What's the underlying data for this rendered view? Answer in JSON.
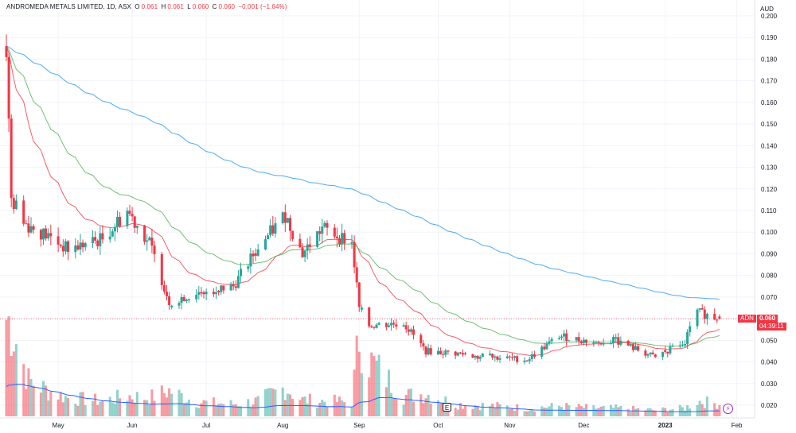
{
  "header": {
    "symbol": "ANDROMEDA METALS LIMITED, 1D, ASX",
    "o_label": "O",
    "o_value": "0.061",
    "h_label": "H",
    "h_value": "0.061",
    "l_label": "L",
    "l_value": "0.060",
    "c_label": "C",
    "c_value": "0.060",
    "change": "−0.001 (−1.64%)"
  },
  "price_tag": {
    "ticker": "ADN",
    "price": "0.060",
    "countdown": "04:39:11"
  },
  "currency_label": "AUD",
  "badges": {
    "earnings": "E",
    "alert_icon": "lightning-icon"
  },
  "colors": {
    "up": "#26a69a",
    "down": "#f23645",
    "ma_fast": "#f23645",
    "ma_mid": "#4caf50",
    "ma_slow": "#2196f3",
    "volume_ma": "#2962ff"
  },
  "chart_data": {
    "type": "candlestick",
    "title": "ANDROMEDA METALS LIMITED, 1D, ASX",
    "ylabel": "AUD",
    "ylim": [
      0.015,
      0.2
    ],
    "y_ticks": [
      "0.200",
      "0.190",
      "0.180",
      "0.170",
      "0.160",
      "0.150",
      "0.140",
      "0.130",
      "0.120",
      "0.110",
      "0.100",
      "0.090",
      "0.080",
      "0.070",
      "0.060",
      "0.050",
      "0.040",
      "0.030",
      "0.020"
    ],
    "x_ticks": [
      "May",
      "Jun",
      "Jul",
      "Aug",
      "Sep",
      "Oct",
      "Nov",
      "Dec",
      "2023",
      "Feb"
    ],
    "last_price": 0.06,
    "waypoints": [
      {
        "date": "2022-04-11",
        "close": 0.185,
        "volume": 0.95
      },
      {
        "date": "2022-04-13",
        "close": 0.115,
        "volume": 0.9
      },
      {
        "date": "2022-04-20",
        "close": 0.103,
        "volume": 0.35
      },
      {
        "date": "2022-04-28",
        "close": 0.098,
        "volume": 0.25
      },
      {
        "date": "2022-05-06",
        "close": 0.092,
        "volume": 0.18
      },
      {
        "date": "2022-05-20",
        "close": 0.097,
        "volume": 0.15
      },
      {
        "date": "2022-05-30",
        "close": 0.11,
        "volume": 0.2
      },
      {
        "date": "2022-06-08",
        "close": 0.095,
        "volume": 0.18
      },
      {
        "date": "2022-06-16",
        "close": 0.068,
        "volume": 0.25
      },
      {
        "date": "2022-06-27",
        "close": 0.072,
        "volume": 0.14
      },
      {
        "date": "2022-07-12",
        "close": 0.075,
        "volume": 0.12
      },
      {
        "date": "2022-07-22",
        "close": 0.093,
        "volume": 0.15
      },
      {
        "date": "2022-08-02",
        "close": 0.108,
        "volume": 0.28
      },
      {
        "date": "2022-08-09",
        "close": 0.09,
        "volume": 0.16
      },
      {
        "date": "2022-08-17",
        "close": 0.102,
        "volume": 0.15
      },
      {
        "date": "2022-08-29",
        "close": 0.095,
        "volume": 0.14
      },
      {
        "date": "2022-09-01",
        "close": 0.065,
        "volume": 0.8
      },
      {
        "date": "2022-09-05",
        "close": 0.057,
        "volume": 0.55
      },
      {
        "date": "2022-09-19",
        "close": 0.058,
        "volume": 0.2
      },
      {
        "date": "2022-09-28",
        "close": 0.045,
        "volume": 0.22
      },
      {
        "date": "2022-10-10",
        "close": 0.044,
        "volume": 0.12
      },
      {
        "date": "2022-10-27",
        "close": 0.042,
        "volume": 0.1
      },
      {
        "date": "2022-11-08",
        "close": 0.041,
        "volume": 0.08
      },
      {
        "date": "2022-11-21",
        "close": 0.052,
        "volume": 0.1
      },
      {
        "date": "2022-12-05",
        "close": 0.049,
        "volume": 0.08
      },
      {
        "date": "2022-12-14",
        "close": 0.05,
        "volume": 0.08
      },
      {
        "date": "2022-12-30",
        "close": 0.042,
        "volume": 0.06
      },
      {
        "date": "2023-01-11",
        "close": 0.05,
        "volume": 0.08
      },
      {
        "date": "2023-01-16",
        "close": 0.063,
        "volume": 0.15
      },
      {
        "date": "2023-01-25",
        "close": 0.06,
        "volume": 0.12
      }
    ],
    "moving_averages": [
      {
        "name": "fast",
        "color": "#f23645"
      },
      {
        "name": "medium",
        "color": "#4caf50"
      },
      {
        "name": "slow",
        "color": "#2196f3"
      }
    ],
    "grid": true,
    "legend": "top-left"
  }
}
